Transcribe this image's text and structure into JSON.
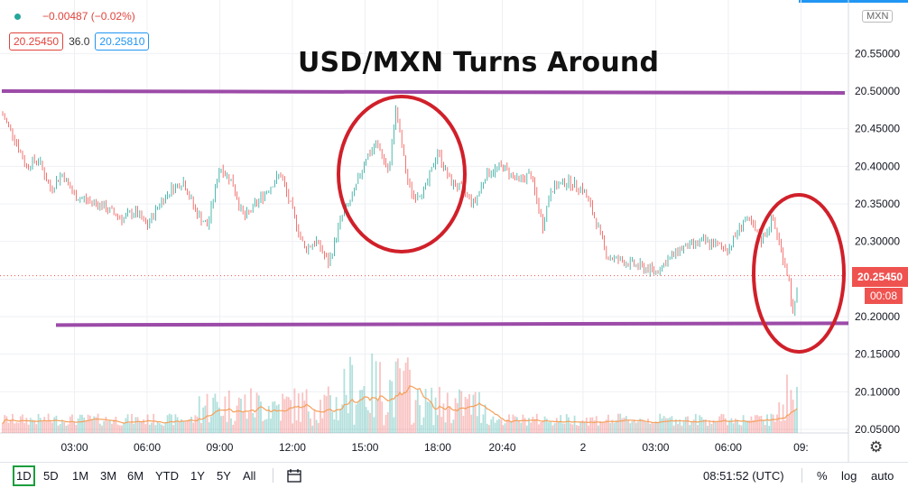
{
  "header": {
    "change": "−0.00487 (−0.02%)",
    "sell_price": "20.25450",
    "spread": "36.0",
    "buy_price": "20.25810"
  },
  "title": "USD/MXN Turns Around",
  "axis_badge": "MXN",
  "current_price_label": "20.25450",
  "countdown": "00:08",
  "chart_data": {
    "type": "candlestick",
    "title": "USD/MXN Turns Around",
    "y_ticks": [
      20.55,
      20.5,
      20.45,
      20.4,
      20.35,
      20.3,
      20.25,
      20.2,
      20.15,
      20.1,
      20.05
    ],
    "y_tick_labels": [
      "20.55000",
      "20.50000",
      "20.45000",
      "20.40000",
      "20.35000",
      "20.30000",
      "20.25450",
      "20.20000",
      "20.15000",
      "20.10000",
      "20.05000"
    ],
    "ylim": [
      20.05,
      20.6
    ],
    "x_tick_labels": [
      "03:00",
      "06:00",
      "09:00",
      "12:00",
      "15:00",
      "18:00",
      "20:40",
      "2",
      "03:00",
      "06:00",
      "09:"
    ],
    "price_path": [
      [
        "00:00",
        20.47
      ],
      [
        "00:30",
        20.44
      ],
      [
        "01:00",
        20.4
      ],
      [
        "01:30",
        20.41
      ],
      [
        "02:00",
        20.37
      ],
      [
        "02:30",
        20.39
      ],
      [
        "03:00",
        20.36
      ],
      [
        "04:00",
        20.35
      ],
      [
        "05:00",
        20.33
      ],
      [
        "05:30",
        20.34
      ],
      [
        "06:00",
        20.32
      ],
      [
        "06:30",
        20.35
      ],
      [
        "07:00",
        20.37
      ],
      [
        "07:30",
        20.38
      ],
      [
        "08:00",
        20.34
      ],
      [
        "08:30",
        20.32
      ],
      [
        "09:00",
        20.4
      ],
      [
        "09:30",
        20.38
      ],
      [
        "10:00",
        20.33
      ],
      [
        "10:30",
        20.35
      ],
      [
        "11:00",
        20.37
      ],
      [
        "11:30",
        20.39
      ],
      [
        "12:00",
        20.34
      ],
      [
        "12:30",
        20.29
      ],
      [
        "13:00",
        20.3
      ],
      [
        "13:30",
        20.27
      ],
      [
        "14:00",
        20.33
      ],
      [
        "14:30",
        20.36
      ],
      [
        "15:00",
        20.41
      ],
      [
        "15:30",
        20.43
      ],
      [
        "16:00",
        20.39
      ],
      [
        "16:15",
        20.48
      ],
      [
        "16:45",
        20.38
      ],
      [
        "17:00",
        20.36
      ],
      [
        "17:30",
        20.37
      ],
      [
        "18:00",
        20.42
      ],
      [
        "18:30",
        20.38
      ],
      [
        "19:00",
        20.37
      ],
      [
        "19:30",
        20.35
      ],
      [
        "20:00",
        20.39
      ],
      [
        "20:40",
        20.4
      ],
      [
        "21:20",
        20.38
      ],
      [
        "21:50",
        20.39
      ],
      [
        "22:20",
        20.32
      ],
      [
        "22:40",
        20.37
      ],
      [
        "23:20",
        20.38
      ],
      [
        "00:00",
        20.37
      ],
      [
        "00:30",
        20.33
      ],
      [
        "01:00",
        20.28
      ],
      [
        "02:00",
        20.27
      ],
      [
        "03:00",
        20.26
      ],
      [
        "04:00",
        20.29
      ],
      [
        "05:00",
        20.3
      ],
      [
        "06:00",
        20.29
      ],
      [
        "06:40",
        20.33
      ],
      [
        "07:00",
        20.32
      ],
      [
        "07:20",
        20.3
      ],
      [
        "07:50",
        20.33
      ],
      [
        "08:10",
        20.29
      ],
      [
        "08:30",
        20.25
      ],
      [
        "08:40",
        20.2
      ],
      [
        "08:50",
        20.23
      ],
      [
        "08:52",
        20.2545
      ]
    ],
    "horizontal_lines": [
      20.5,
      20.19
    ],
    "circles": [
      {
        "center_time": "16:00",
        "center_price": 20.4
      },
      {
        "center_time": "07:40",
        "center_price": 20.25
      }
    ],
    "volume": "histogram with moving-average line",
    "colors": {
      "up": "#26a69a",
      "down": "#ef5350",
      "levels": "#9c4ba8",
      "circles": "#d0202a"
    }
  },
  "toolbar": {
    "ranges": [
      "1D",
      "5D",
      "1M",
      "3M",
      "6M",
      "YTD",
      "1Y",
      "5Y",
      "All"
    ],
    "active_range": "1D",
    "clock": "08:51:52 (UTC)",
    "percent": "%",
    "log": "log",
    "auto": "auto"
  }
}
